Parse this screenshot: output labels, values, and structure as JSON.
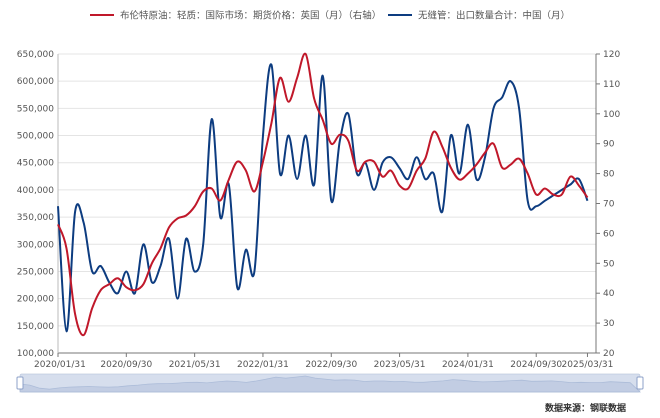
{
  "chart_data": {
    "type": "line",
    "legend": [
      {
        "label": "布伦特原油：轻质：国际市场：期货价格：英国（月）（右轴）",
        "color": "#c0182a"
      },
      {
        "label": "无缝管：出口数量合计：中国（月）",
        "color": "#0d3c80"
      }
    ],
    "x_tick_labels": [
      "2020/01/31",
      "2020/09/30",
      "2021/05/31",
      "2022/01/31",
      "2022/09/30",
      "2023/05/31",
      "2024/01/31",
      "2024/09/30",
      "2025/03/31"
    ],
    "y_left_ticks": [
      "100,000",
      "150,000",
      "200,000",
      "250,000",
      "300,000",
      "350,000",
      "400,000",
      "450,000",
      "500,000",
      "550,000",
      "600,000",
      "650,000"
    ],
    "y_right_ticks": [
      "20",
      "30",
      "40",
      "50",
      "60",
      "70",
      "80",
      "90",
      "100",
      "110",
      "120"
    ],
    "y_left_range": [
      100000,
      650000
    ],
    "y_right_range": [
      20,
      120
    ],
    "x_range": [
      "2020-01",
      "2025-04"
    ],
    "series": [
      {
        "name": "布伦特原油：轻质：国际市场：期货价格：英国（月）（右轴）",
        "axis": "right",
        "color": "#c0182a",
        "x": [
          "2020-01",
          "2020-02",
          "2020-03",
          "2020-04",
          "2020-05",
          "2020-06",
          "2020-07",
          "2020-08",
          "2020-09",
          "2020-10",
          "2020-11",
          "2020-12",
          "2021-01",
          "2021-02",
          "2021-03",
          "2021-04",
          "2021-05",
          "2021-06",
          "2021-07",
          "2021-08",
          "2021-09",
          "2021-10",
          "2021-11",
          "2021-12",
          "2022-01",
          "2022-02",
          "2022-03",
          "2022-04",
          "2022-05",
          "2022-06",
          "2022-07",
          "2022-08",
          "2022-09",
          "2022-10",
          "2022-11",
          "2022-12",
          "2023-01",
          "2023-02",
          "2023-03",
          "2023-04",
          "2023-05",
          "2023-06",
          "2023-07",
          "2023-08",
          "2023-09",
          "2023-10",
          "2023-11",
          "2023-12",
          "2024-01",
          "2024-02",
          "2024-03",
          "2024-04",
          "2024-05",
          "2024-06",
          "2024-07",
          "2024-08",
          "2024-09",
          "2024-10",
          "2024-11",
          "2024-12",
          "2025-01",
          "2025-02",
          "2025-03"
        ],
        "values": [
          63,
          55,
          33,
          26,
          35,
          41,
          43,
          45,
          42,
          41,
          43,
          50,
          55,
          62,
          65,
          66,
          69,
          74,
          75,
          71,
          78,
          84,
          81,
          74,
          84,
          97,
          112,
          104,
          112,
          120,
          105,
          98,
          90,
          93,
          91,
          81,
          84,
          84,
          79,
          81,
          76,
          75,
          81,
          85,
          94,
          89,
          82,
          78,
          80,
          83,
          87,
          90,
          82,
          83,
          85,
          80,
          73,
          75,
          73,
          73,
          79,
          76,
          72
        ]
      },
      {
        "name": "无缝管：出口数量合计：中国（月）",
        "axis": "left",
        "color": "#0d3c80",
        "x": [
          "2020-01",
          "2020-02",
          "2020-03",
          "2020-04",
          "2020-05",
          "2020-06",
          "2020-07",
          "2020-08",
          "2020-09",
          "2020-10",
          "2020-11",
          "2020-12",
          "2021-01",
          "2021-02",
          "2021-03",
          "2021-04",
          "2021-05",
          "2021-06",
          "2021-07",
          "2021-08",
          "2021-09",
          "2021-10",
          "2021-11",
          "2021-12",
          "2022-01",
          "2022-02",
          "2022-03",
          "2022-04",
          "2022-05",
          "2022-06",
          "2022-07",
          "2022-08",
          "2022-09",
          "2022-10",
          "2022-11",
          "2022-12",
          "2023-01",
          "2023-02",
          "2023-03",
          "2023-04",
          "2023-05",
          "2023-06",
          "2023-07",
          "2023-08",
          "2023-09",
          "2023-10",
          "2023-11",
          "2023-12",
          "2024-01",
          "2024-02",
          "2024-03",
          "2024-04",
          "2024-05",
          "2024-06",
          "2024-07",
          "2024-08",
          "2024-09",
          "2024-10",
          "2024-11",
          "2024-12",
          "2025-01",
          "2025-02",
          "2025-03"
        ],
        "values": [
          370,
          140,
          360,
          340,
          250,
          260,
          230,
          210,
          250,
          210,
          300,
          230,
          260,
          310,
          200,
          310,
          250,
          300,
          530,
          350,
          410,
          220,
          290,
          250,
          500,
          630,
          430,
          500,
          420,
          500,
          410,
          610,
          380,
          490,
          540,
          430,
          450,
          400,
          450,
          460,
          440,
          420,
          460,
          420,
          430,
          360,
          500,
          430,
          520,
          420,
          460,
          550,
          570,
          600,
          550,
          380,
          370,
          380,
          390,
          400,
          410,
          420,
          380
        ]
      }
    ]
  },
  "source_label": "数据来源：钢联数据"
}
